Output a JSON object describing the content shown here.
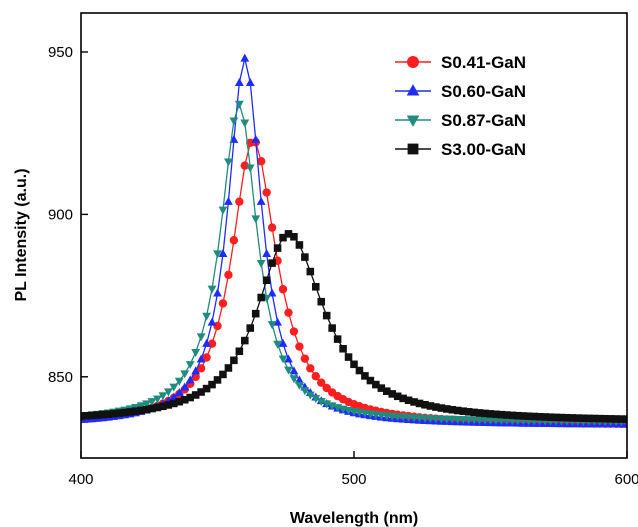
{
  "chart_data": {
    "type": "line",
    "title": "",
    "xlabel": "Wavelength (nm)",
    "ylabel": "PL Intensity (a.u.)",
    "xlim": [
      400,
      600
    ],
    "ylim": [
      825,
      962
    ],
    "xticks": [
      400,
      500,
      600
    ],
    "yticks": [
      850,
      900,
      950
    ],
    "grid": false,
    "legend_position": "top-right",
    "series": [
      {
        "name": "S0.41-GaN",
        "color": "#ff1f1f",
        "marker": "circle",
        "peak_x": 463,
        "peak_y": 923,
        "width_left": 9.5,
        "width_right": 10.5,
        "baseline": 835
      },
      {
        "name": "S0.60-GaN",
        "color": "#1f2bff",
        "marker": "triangle-up",
        "peak_x": 460,
        "peak_y": 948,
        "width_left": 7.5,
        "width_right": 7.5,
        "baseline": 835
      },
      {
        "name": "S0.87-GaN",
        "color": "#1f8c80",
        "marker": "triangle-down",
        "peak_x": 458,
        "peak_y": 934,
        "width_left": 8.5,
        "width_right": 8.0,
        "baseline": 836
      },
      {
        "name": "S3.00-GaN",
        "color": "#111111",
        "marker": "square",
        "peak_x": 476,
        "peak_y": 894,
        "width_left": 14.0,
        "width_right": 16.0,
        "baseline": 836
      }
    ]
  }
}
